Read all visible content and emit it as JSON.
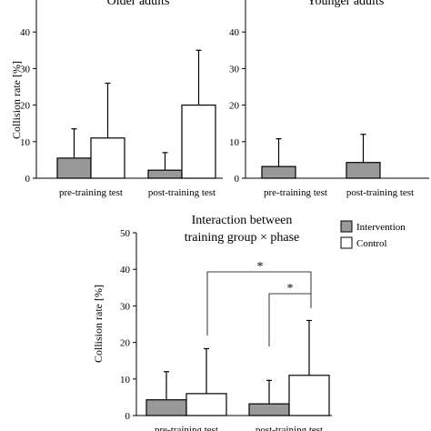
{
  "chart_data": [
    {
      "type": "bar",
      "title": "Older adults",
      "ylabel": "Collision rate [%]",
      "ylim": [
        0,
        50
      ],
      "yticks": [
        0,
        10,
        20,
        30,
        40
      ],
      "categories": [
        "pre-training test",
        "post-training test"
      ],
      "series": [
        {
          "name": "Intervention",
          "values": [
            5.5,
            2.2
          ],
          "error_upper": [
            13.5,
            7.0
          ],
          "color": "#999999"
        },
        {
          "name": "Control",
          "values": [
            11.0,
            20.0
          ],
          "error_upper": [
            26.0,
            35.0
          ],
          "color": "#ffffff"
        }
      ]
    },
    {
      "type": "bar",
      "title": "Younger adults",
      "ylabel": "",
      "ylim": [
        0,
        50
      ],
      "yticks": [
        0,
        10,
        20,
        30,
        40
      ],
      "categories": [
        "pre-training test",
        "post-training test"
      ],
      "series": [
        {
          "name": "Intervention",
          "values": [
            3.2,
            4.3
          ],
          "error_upper": [
            10.8,
            12.0
          ],
          "color": "#999999"
        },
        {
          "name": "Control",
          "values": [
            0,
            0
          ],
          "error_upper": [
            0,
            0
          ],
          "color": "#ffffff"
        }
      ]
    },
    {
      "type": "bar",
      "title": "Interaction between training group × phase",
      "title_lines": [
        "Interaction between",
        "training group × phase"
      ],
      "ylabel": "Collision rate [%]",
      "ylim": [
        0,
        50
      ],
      "yticks": [
        0,
        10,
        20,
        30,
        40,
        50
      ],
      "categories": [
        "pre-training test",
        "post-training test"
      ],
      "series": [
        {
          "name": "Intervention",
          "values": [
            4.3,
            3.2
          ],
          "error_upper": [
            12.0,
            9.6
          ],
          "color": "#999999"
        },
        {
          "name": "Control",
          "values": [
            6.0,
            11.0
          ],
          "error_upper": [
            18.3,
            26.0
          ],
          "color": "#ffffff"
        }
      ],
      "legend": {
        "position": "top-right",
        "entries": [
          "Intervention",
          "Control"
        ]
      },
      "annotations": [
        "*",
        "*"
      ]
    }
  ]
}
